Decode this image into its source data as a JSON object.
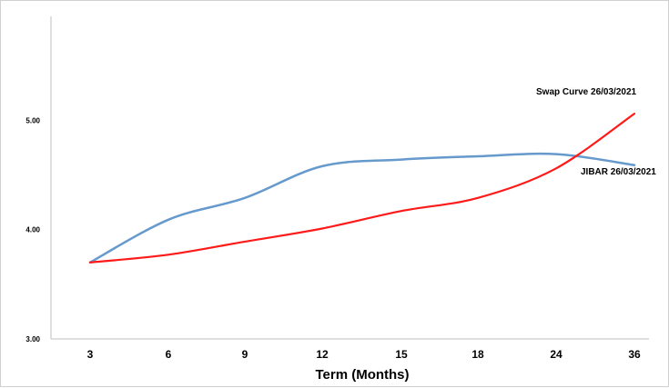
{
  "chart_data": {
    "type": "line",
    "title": "",
    "xlabel": "Term (Months)",
    "ylabel": "",
    "categories": [
      "3",
      "6",
      "9",
      "12",
      "15",
      "18",
      "24",
      "36"
    ],
    "yticks": [
      "3.00",
      "4.00",
      "5.00"
    ],
    "ylim": [
      3.0,
      5.95
    ],
    "grid": false,
    "legend": "none",
    "series": [
      {
        "name": "Swap Curve  26/03/2021",
        "color": "#ff1a1a",
        "values": [
          3.7,
          3.77,
          3.89,
          4.01,
          4.17,
          4.29,
          4.56,
          5.06
        ]
      },
      {
        "name": "JIBAR  26/03/2021",
        "color": "#6699cc",
        "values": [
          3.7,
          4.09,
          4.29,
          4.58,
          4.64,
          4.67,
          4.69,
          4.59
        ]
      }
    ]
  }
}
